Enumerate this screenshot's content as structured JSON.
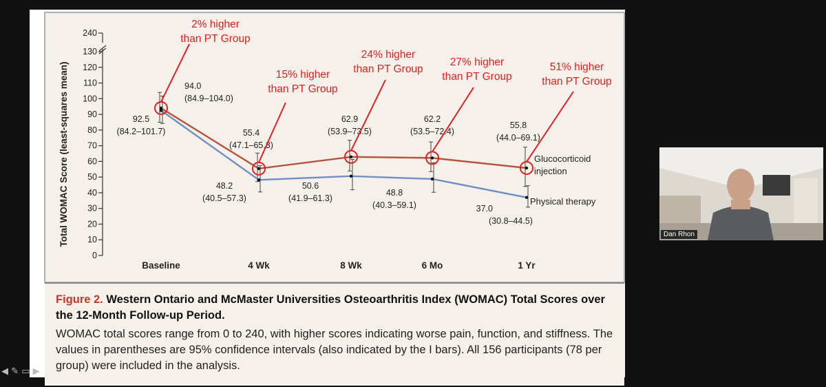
{
  "chart_data": {
    "type": "line",
    "title": "",
    "ylabel": "Total WOMAC Score (least-squares mean)",
    "xlabel": "",
    "categories": [
      "Baseline",
      "4 Wk",
      "8 Wk",
      "6 Mo",
      "1 Yr"
    ],
    "ylim": [
      0,
      130
    ],
    "y_ticks": [
      0,
      10,
      20,
      30,
      40,
      50,
      60,
      70,
      80,
      90,
      100,
      110,
      120,
      130
    ],
    "y_axis_break_label": "240",
    "grid": false,
    "series": [
      {
        "name": "Glucocorticoid injection",
        "color": "#b5533f",
        "values": [
          94.0,
          55.4,
          62.9,
          62.2,
          55.8
        ],
        "ci_low": [
          84.9,
          47.1,
          53.9,
          53.5,
          44.0
        ],
        "ci_high": [
          104.0,
          65.3,
          73.5,
          72.4,
          69.1
        ],
        "value_labels": [
          "94.0",
          "55.4",
          "62.9",
          "62.2",
          "55.8"
        ],
        "ci_labels": [
          "(84.9–104.0)",
          "(47.1–65.3)",
          "(53.9–73.5)",
          "(53.5–72.4)",
          "(44.0–69.1)"
        ]
      },
      {
        "name": "Physical therapy",
        "color": "#6f8fc4",
        "values": [
          92.5,
          48.2,
          50.6,
          48.8,
          37.0
        ],
        "ci_low": [
          84.2,
          40.5,
          41.9,
          40.3,
          30.8
        ],
        "ci_high": [
          101.7,
          57.3,
          61.3,
          59.1,
          44.5
        ],
        "value_labels": [
          "92.5",
          "48.2",
          "50.6",
          "48.8",
          "37.0"
        ],
        "ci_labels": [
          "(84.2–101.7)",
          "(40.5–57.3)",
          "(41.9–61.3)",
          "(40.3–59.1)",
          "(30.8–44.5)"
        ]
      }
    ],
    "annotations": [
      {
        "line1": "2% higher",
        "line2": "than PT Group",
        "category_index": 0
      },
      {
        "line1": "15% higher",
        "line2": "than PT Group",
        "category_index": 1
      },
      {
        "line1": "24% higher",
        "line2": "than PT Group",
        "category_index": 2
      },
      {
        "line1": "27% higher",
        "line2": "than PT Group",
        "category_index": 3
      },
      {
        "line1": "51% higher",
        "line2": "than PT Group",
        "category_index": 4
      }
    ],
    "series_label_lines": {
      "glucocorticoid": [
        "Glucocorticoid",
        "injection"
      ],
      "physical_therapy": [
        "Physical therapy"
      ]
    },
    "annotation_color": "#e02020"
  },
  "caption": {
    "figure_label": "Figure 2.",
    "title": "Western Ontario and McMaster Universities Osteoarthritis Index (WOMAC) Total Scores over the 12-Month Follow-up Period.",
    "body": "WOMAC total scores range from 0 to 240, with higher scores indicating worse pain, function, and stiffness. The values in parentheses are 95% confidence intervals (also indicated by the I bars). All 156 participants (78 per group) were included in the analysis."
  },
  "video": {
    "speaker_name": "Dan Rhon"
  }
}
